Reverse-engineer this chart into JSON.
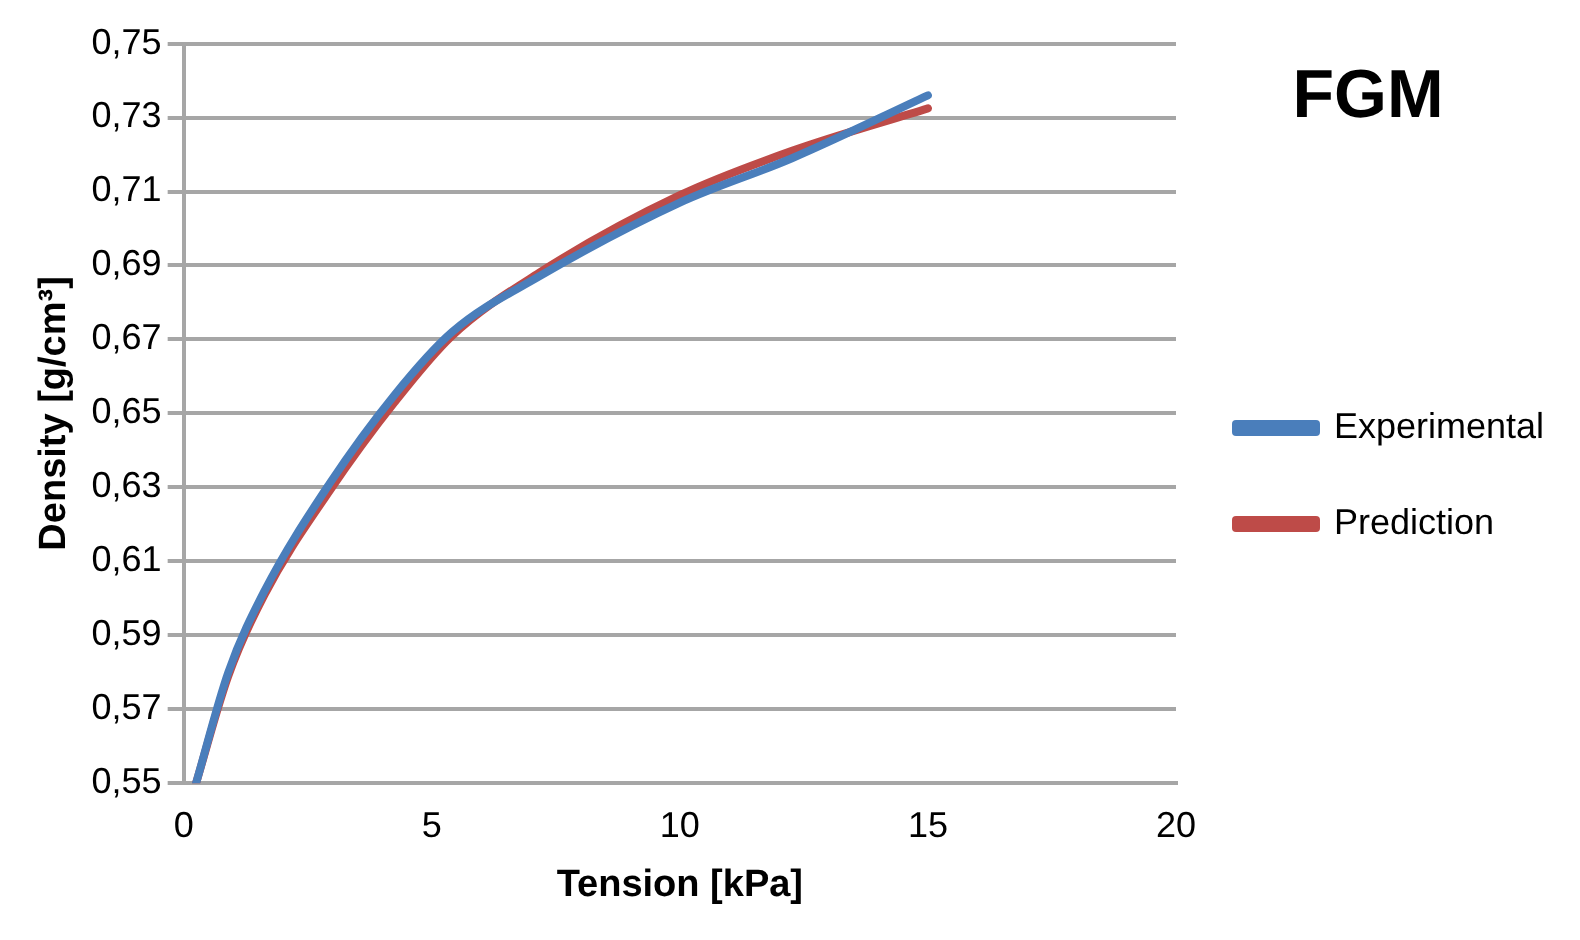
{
  "chart_data": {
    "type": "line",
    "title": "FGM",
    "xlabel": "Tension [kPa]",
    "ylabel": "Density [g/cm³]",
    "xlim": [
      0,
      20
    ],
    "xticks": [
      0,
      5,
      10,
      15,
      20
    ],
    "ylim": [
      0.55,
      0.75
    ],
    "yticks": [
      {
        "value": 0.55,
        "label": "0,55"
      },
      {
        "value": 0.57,
        "label": "0,57"
      },
      {
        "value": 0.59,
        "label": "0,59"
      },
      {
        "value": 0.61,
        "label": "0,61"
      },
      {
        "value": 0.63,
        "label": "0,63"
      },
      {
        "value": 0.65,
        "label": "0,65"
      },
      {
        "value": 0.67,
        "label": "0,67"
      },
      {
        "value": 0.69,
        "label": "0,69"
      },
      {
        "value": 0.71,
        "label": "0,71"
      },
      {
        "value": 0.73,
        "label": "0,73"
      },
      {
        "value": 0.75,
        "label": "0,75"
      }
    ],
    "grid": "y",
    "legend": "right",
    "marker": "none",
    "line_style": "solid",
    "series": [
      {
        "name": "Experimental",
        "color": "#4a7ebb",
        "x": [
          0.25,
          0.9,
          1.63,
          2.94,
          4.25,
          5.41,
          7.16,
          10,
          12.26,
          15
        ],
        "values": [
          0.55,
          0.58,
          0.602,
          0.631,
          0.655,
          0.672,
          0.687,
          0.707,
          0.719,
          0.736
        ]
      },
      {
        "name": "Prediction",
        "color": "#be4b48",
        "x": [
          0.25,
          0.9,
          1.63,
          2.94,
          4.25,
          5.41,
          7.16,
          10,
          12.26,
          15
        ],
        "values": [
          0.55,
          0.579,
          0.601,
          0.629,
          0.653,
          0.671,
          0.688,
          0.709,
          0.721,
          0.7325
        ]
      }
    ]
  }
}
